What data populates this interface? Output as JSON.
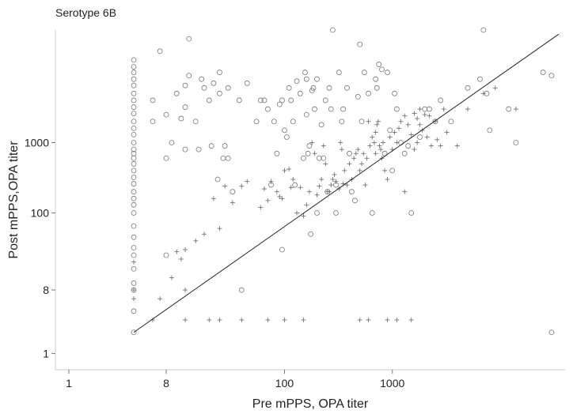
{
  "chart_data": {
    "type": "scatter",
    "title": "Serotype 6B",
    "xlabel": "Pre mPPS, OPA titer",
    "ylabel": "Post mPPS,OPA titer",
    "xscale": "log",
    "yscale": "log",
    "xlim": [
      1,
      40000
    ],
    "ylim": [
      0.8,
      40000
    ],
    "x_ticks": [
      1,
      8,
      100,
      1000
    ],
    "y_ticks": [
      1,
      8,
      100,
      1000
    ],
    "grid": false,
    "legend": "none",
    "series": [
      {
        "marker": "circle",
        "points": [
          [
            4,
            15000
          ],
          [
            4,
            12000
          ],
          [
            4,
            10000
          ],
          [
            4,
            8000
          ],
          [
            4,
            6500
          ],
          [
            4,
            5000
          ],
          [
            4,
            4000
          ],
          [
            4,
            3200
          ],
          [
            4,
            2600
          ],
          [
            4,
            2000
          ],
          [
            4,
            1600
          ],
          [
            4,
            1300
          ],
          [
            4,
            1000
          ],
          [
            4,
            800
          ],
          [
            4,
            700
          ],
          [
            4,
            600
          ],
          [
            4,
            500
          ],
          [
            4,
            400
          ],
          [
            4,
            320
          ],
          [
            4,
            260
          ],
          [
            4,
            200
          ],
          [
            4,
            160
          ],
          [
            4,
            130
          ],
          [
            4,
            100
          ],
          [
            4,
            65
          ],
          [
            4,
            45
          ],
          [
            4,
            32
          ],
          [
            4,
            25
          ],
          [
            4,
            16
          ],
          [
            4,
            10
          ],
          [
            4,
            8
          ],
          [
            4,
            4
          ],
          [
            4,
            2
          ],
          [
            6,
            4000
          ],
          [
            6,
            2000
          ],
          [
            7,
            20000
          ],
          [
            8,
            2500
          ],
          [
            8,
            600
          ],
          [
            8,
            25
          ],
          [
            9,
            1000
          ],
          [
            10,
            5000
          ],
          [
            11,
            2200
          ],
          [
            12,
            6500
          ],
          [
            12,
            3200
          ],
          [
            12,
            800
          ],
          [
            13,
            30000
          ],
          [
            13,
            9000
          ],
          [
            15,
            2000
          ],
          [
            16,
            800
          ],
          [
            17,
            8000
          ],
          [
            18,
            6000
          ],
          [
            20,
            4000
          ],
          [
            21,
            900
          ],
          [
            22,
            7000
          ],
          [
            24,
            300
          ],
          [
            25,
            10000
          ],
          [
            25,
            5000
          ],
          [
            27,
            600
          ],
          [
            28,
            900
          ],
          [
            30,
            6000
          ],
          [
            30,
            600
          ],
          [
            33,
            200
          ],
          [
            38,
            4000
          ],
          [
            40,
            8
          ],
          [
            45,
            7000
          ],
          [
            55,
            2000
          ],
          [
            60,
            4000
          ],
          [
            65,
            4000
          ],
          [
            70,
            3000
          ],
          [
            75,
            250
          ],
          [
            80,
            2000
          ],
          [
            85,
            700
          ],
          [
            90,
            3500
          ],
          [
            95,
            4000
          ],
          [
            95,
            30
          ],
          [
            100,
            1500
          ],
          [
            105,
            1200
          ],
          [
            110,
            6000
          ],
          [
            115,
            4000
          ],
          [
            120,
            2000
          ],
          [
            125,
            250
          ],
          [
            130,
            7500
          ],
          [
            140,
            5000
          ],
          [
            150,
            600
          ],
          [
            155,
            10000
          ],
          [
            160,
            8000
          ],
          [
            160,
            2500
          ],
          [
            165,
            700
          ],
          [
            170,
            900
          ],
          [
            175,
            50
          ],
          [
            180,
            5500
          ],
          [
            185,
            6000
          ],
          [
            190,
            3000
          ],
          [
            200,
            100
          ],
          [
            200,
            8000
          ],
          [
            210,
            600
          ],
          [
            220,
            1800
          ],
          [
            230,
            600
          ],
          [
            240,
            4000
          ],
          [
            250,
            200
          ],
          [
            260,
            6000
          ],
          [
            270,
            3000
          ],
          [
            280,
            40000
          ],
          [
            300,
            250
          ],
          [
            300,
            100
          ],
          [
            320,
            10000
          ],
          [
            340,
            2000
          ],
          [
            350,
            3000
          ],
          [
            380,
            6000
          ],
          [
            400,
            700
          ],
          [
            420,
            200
          ],
          [
            450,
            150
          ],
          [
            480,
            4500
          ],
          [
            500,
            25000
          ],
          [
            520,
            2000
          ],
          [
            550,
            10000
          ],
          [
            600,
            5000
          ],
          [
            650,
            100
          ],
          [
            700,
            8000
          ],
          [
            720,
            6000
          ],
          [
            750,
            13000
          ],
          [
            800,
            11000
          ],
          [
            850,
            700
          ],
          [
            900,
            10000
          ],
          [
            950,
            1500
          ],
          [
            1000,
            400
          ],
          [
            1050,
            5000
          ],
          [
            1100,
            3000
          ],
          [
            1200,
            1000
          ],
          [
            1300,
            700
          ],
          [
            1400,
            900
          ],
          [
            1500,
            100
          ],
          [
            1800,
            1200
          ],
          [
            2000,
            3000
          ],
          [
            2200,
            3000
          ],
          [
            2500,
            2000
          ],
          [
            2800,
            4000
          ],
          [
            3500,
            2000
          ],
          [
            5000,
            6000
          ],
          [
            6500,
            8000
          ],
          [
            7000,
            40000
          ],
          [
            7500,
            5000
          ],
          [
            8000,
            1500
          ],
          [
            12000,
            3000
          ],
          [
            14000,
            1000
          ],
          [
            25000,
            10000
          ],
          [
            30000,
            9000
          ],
          [
            30000,
            2
          ]
        ]
      },
      {
        "marker": "plus",
        "points": [
          [
            4,
            8
          ],
          [
            4,
            6
          ],
          [
            4,
            20
          ],
          [
            7,
            6
          ],
          [
            9,
            12
          ],
          [
            10,
            28
          ],
          [
            11,
            22
          ],
          [
            12,
            30
          ],
          [
            12,
            8
          ],
          [
            15,
            40
          ],
          [
            18,
            50
          ],
          [
            22,
            160
          ],
          [
            25,
            60
          ],
          [
            28,
            240
          ],
          [
            33,
            140
          ],
          [
            40,
            240
          ],
          [
            45,
            280
          ],
          [
            60,
            120
          ],
          [
            65,
            220
          ],
          [
            70,
            150
          ],
          [
            75,
            280
          ],
          [
            85,
            200
          ],
          [
            90,
            170
          ],
          [
            95,
            160
          ],
          [
            100,
            400
          ],
          [
            110,
            420
          ],
          [
            115,
            230
          ],
          [
            120,
            300
          ],
          [
            130,
            100
          ],
          [
            140,
            230
          ],
          [
            150,
            90
          ],
          [
            160,
            130
          ],
          [
            170,
            200
          ],
          [
            180,
            1000
          ],
          [
            190,
            700
          ],
          [
            200,
            180
          ],
          [
            210,
            240
          ],
          [
            220,
            300
          ],
          [
            230,
            900
          ],
          [
            240,
            500
          ],
          [
            250,
            200
          ],
          [
            260,
            200
          ],
          [
            270,
            250
          ],
          [
            280,
            300
          ],
          [
            290,
            350
          ],
          [
            300,
            280
          ],
          [
            320,
            220
          ],
          [
            330,
            1000
          ],
          [
            340,
            800
          ],
          [
            350,
            260
          ],
          [
            360,
            400
          ],
          [
            380,
            250
          ],
          [
            400,
            500
          ],
          [
            420,
            300
          ],
          [
            440,
            600
          ],
          [
            460,
            700
          ],
          [
            480,
            800
          ],
          [
            500,
            400
          ],
          [
            520,
            500
          ],
          [
            540,
            700
          ],
          [
            560,
            250
          ],
          [
            580,
            600
          ],
          [
            600,
            2000
          ],
          [
            620,
            900
          ],
          [
            650,
            1200
          ],
          [
            680,
            1000
          ],
          [
            700,
            1400
          ],
          [
            720,
            1800
          ],
          [
            740,
            2000
          ],
          [
            760,
            900
          ],
          [
            780,
            800
          ],
          [
            800,
            600
          ],
          [
            820,
            1000
          ],
          [
            850,
            400
          ],
          [
            900,
            300
          ],
          [
            950,
            1200
          ],
          [
            1000,
            800
          ],
          [
            1050,
            1400
          ],
          [
            1100,
            1000
          ],
          [
            1150,
            1600
          ],
          [
            1200,
            2000
          ],
          [
            1300,
            2400
          ],
          [
            1400,
            1800
          ],
          [
            1500,
            1300
          ],
          [
            1600,
            2600
          ],
          [
            1700,
            2200
          ],
          [
            1800,
            1800
          ],
          [
            2000,
            2500
          ],
          [
            2200,
            2400
          ],
          [
            2500,
            2000
          ],
          [
            3000,
            3000
          ],
          [
            1600,
            800
          ],
          [
            1700,
            1000
          ],
          [
            1800,
            3000
          ],
          [
            1900,
            1500
          ],
          [
            2100,
            1200
          ],
          [
            2300,
            900
          ],
          [
            2600,
            1100
          ],
          [
            2800,
            900
          ],
          [
            3200,
            1400
          ],
          [
            4000,
            900
          ],
          [
            5000,
            3000
          ],
          [
            7000,
            5000
          ],
          [
            9000,
            6000
          ],
          [
            14000,
            3000
          ],
          [
            1300,
            200
          ],
          [
            700,
            700
          ],
          [
            500,
            3
          ],
          [
            600,
            3
          ],
          [
            900,
            3
          ],
          [
            1100,
            3
          ],
          [
            150,
            3
          ],
          [
            100,
            3
          ],
          [
            70,
            3
          ],
          [
            40,
            3
          ],
          [
            20,
            3
          ],
          [
            12,
            3
          ],
          [
            6,
            3
          ],
          [
            25,
            3
          ],
          [
            1500,
            3
          ]
        ]
      }
    ],
    "fit_line": {
      "from": [
        4,
        2
      ],
      "to": [
        35000,
        35000
      ]
    }
  }
}
